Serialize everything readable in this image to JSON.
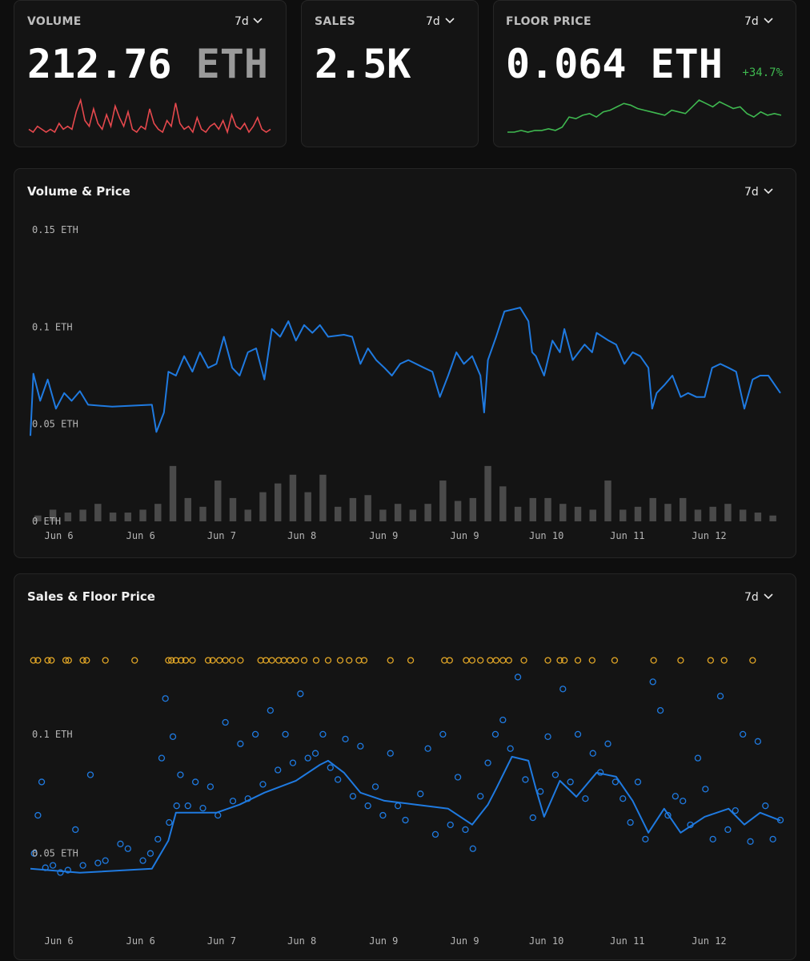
{
  "cards": [
    {
      "label": "VOLUME",
      "period": "7d",
      "value": 212.76,
      "unit": "ETH",
      "sparkline": {
        "type": "line",
        "color": "#e5484d",
        "values": [
          2,
          1,
          3,
          2,
          1,
          2,
          1,
          4,
          2,
          3,
          2,
          8,
          12,
          5,
          3,
          9,
          4,
          2,
          7,
          3,
          10,
          6,
          3,
          8,
          2,
          1,
          3,
          2,
          9,
          4,
          2,
          1,
          5,
          3,
          11,
          4,
          2,
          3,
          1,
          6,
          2,
          1,
          3,
          4,
          2,
          5,
          1,
          7,
          3,
          2,
          4,
          1,
          3,
          6,
          2,
          1,
          2
        ]
      }
    },
    {
      "label": "SALES",
      "period": "7d",
      "value": "2.5K"
    },
    {
      "label": "FLOOR PRICE",
      "period": "7d",
      "value": 0.064,
      "unit": "ETH",
      "change": "+34.7%",
      "sparkline": {
        "type": "line",
        "color": "#3fb950",
        "values": [
          0.047,
          0.047,
          0.048,
          0.047,
          0.048,
          0.048,
          0.049,
          0.048,
          0.05,
          0.056,
          0.055,
          0.057,
          0.058,
          0.056,
          0.059,
          0.06,
          0.062,
          0.064,
          0.063,
          0.061,
          0.06,
          0.059,
          0.058,
          0.057,
          0.06,
          0.059,
          0.058,
          0.062,
          0.066,
          0.064,
          0.062,
          0.065,
          0.063,
          0.061,
          0.062,
          0.058,
          0.056,
          0.059,
          0.057,
          0.058,
          0.057
        ]
      }
    }
  ],
  "chart_data": [
    {
      "type": "line",
      "title": "Volume & Price",
      "period": "7d",
      "xlim": [
        0,
        100
      ],
      "xticks": [
        {
          "value": 3.8,
          "label": "Jun 6"
        },
        {
          "value": 14.7,
          "label": "Jun 6"
        },
        {
          "value": 25.5,
          "label": "Jun 7"
        },
        {
          "value": 36.2,
          "label": "Jun 8"
        },
        {
          "value": 47.1,
          "label": "Jun 9"
        },
        {
          "value": 57.9,
          "label": "Jun 9"
        },
        {
          "value": 68.8,
          "label": "Jun 10"
        },
        {
          "value": 79.6,
          "label": "Jun 11"
        },
        {
          "value": 90.5,
          "label": "Jun 12"
        }
      ],
      "ylim": [
        0,
        0.15
      ],
      "yticks": [
        {
          "value": 0,
          "label": "0 ETH"
        },
        {
          "value": 0.05,
          "label": "0.05 ETH"
        },
        {
          "value": 0.1,
          "label": "0.1 ETH"
        },
        {
          "value": 0.15,
          "label": "0.15 ETH"
        }
      ],
      "y2lim": [
        0,
        50
      ],
      "series": [
        {
          "type": "line",
          "color": "#1f7ae0",
          "x": [
            0,
            0.4,
            1.3,
            2.3,
            3.4,
            4.5,
            5.5,
            6.6,
            7.7,
            10.9,
            16.2,
            16.8,
            17.8,
            18.4,
            19.4,
            20.5,
            21.6,
            22.6,
            23.7,
            24.8,
            25.8,
            26.9,
            27.9,
            29.0,
            30.1,
            31.2,
            32.2,
            33.3,
            34.4,
            35.4,
            36.5,
            37.6,
            38.6,
            39.7,
            41.8,
            42.9,
            44.0,
            45.0,
            46.1,
            47.2,
            48.2,
            49.3,
            50.4,
            52.5,
            53.6,
            54.6,
            55.7,
            56.8,
            57.8,
            58.9,
            60.0,
            60.5,
            61.0,
            62.1,
            63.2,
            65.3,
            66.4,
            66.9,
            67.4,
            68.5,
            69.6,
            70.6,
            71.2,
            72.3,
            73.9,
            74.9,
            75.5,
            77.1,
            78.1,
            79.2,
            80.3,
            81.3,
            82.4,
            82.9,
            83.5,
            84.5,
            85.6,
            86.7,
            87.7,
            88.8,
            89.9,
            90.9,
            92.0,
            93.1,
            94.1,
            95.2,
            96.3,
            97.3,
            98.4,
            100
          ],
          "values": [
            0.044,
            0.076,
            0.062,
            0.073,
            0.058,
            0.066,
            0.062,
            0.067,
            0.06,
            0.059,
            0.06,
            0.046,
            0.056,
            0.077,
            0.075,
            0.085,
            0.077,
            0.087,
            0.079,
            0.081,
            0.095,
            0.079,
            0.075,
            0.087,
            0.089,
            0.073,
            0.099,
            0.095,
            0.103,
            0.093,
            0.101,
            0.097,
            0.101,
            0.095,
            0.096,
            0.095,
            0.081,
            0.089,
            0.083,
            0.079,
            0.075,
            0.081,
            0.083,
            0.079,
            0.077,
            0.064,
            0.075,
            0.087,
            0.081,
            0.085,
            0.075,
            0.056,
            0.083,
            0.095,
            0.108,
            0.11,
            0.103,
            0.087,
            0.085,
            0.075,
            0.093,
            0.087,
            0.099,
            0.083,
            0.091,
            0.087,
            0.097,
            0.093,
            0.091,
            0.081,
            0.087,
            0.085,
            0.079,
            0.058,
            0.066,
            0.07,
            0.075,
            0.064,
            0.066,
            0.064,
            0.064,
            0.079,
            0.081,
            0.079,
            0.077,
            0.058,
            0.073,
            0.075,
            0.075,
            0.066
          ]
        },
        {
          "type": "bar",
          "axis": "y2",
          "color": "#4a4a4a",
          "x": [
            1,
            3,
            5,
            7,
            9,
            11,
            13,
            15,
            17,
            19,
            21,
            23,
            25,
            27,
            29,
            31,
            33,
            35,
            37,
            39,
            41,
            43,
            45,
            47,
            49,
            51,
            53,
            55,
            57,
            59,
            61,
            63,
            65,
            67,
            69,
            71,
            73,
            75,
            77,
            79,
            81,
            83,
            85,
            87,
            89,
            91,
            93,
            95,
            97,
            99
          ],
          "values": [
            1,
            2,
            1.5,
            2,
            3,
            1.5,
            1.5,
            2,
            3,
            9.5,
            4,
            2.5,
            7,
            4,
            2,
            5,
            6.5,
            8,
            5,
            8,
            2.5,
            4,
            4.5,
            2,
            3,
            2,
            3,
            7,
            3.5,
            4,
            9.5,
            6,
            2.5,
            4,
            4,
            3,
            2.5,
            2,
            7,
            2,
            2.5,
            4,
            3,
            4,
            2,
            2.5,
            3,
            2,
            1.5,
            1
          ]
        }
      ]
    },
    {
      "type": "scatter",
      "title": "Sales & Floor Price",
      "period": "7d",
      "xlim": [
        0,
        100
      ],
      "xticks": [
        {
          "value": 3.8,
          "label": "Jun 6"
        },
        {
          "value": 14.7,
          "label": "Jun 6"
        },
        {
          "value": 25.5,
          "label": "Jun 7"
        },
        {
          "value": 36.2,
          "label": "Jun 8"
        },
        {
          "value": 47.1,
          "label": "Jun 9"
        },
        {
          "value": 57.9,
          "label": "Jun 9"
        },
        {
          "value": 68.8,
          "label": "Jun 10"
        },
        {
          "value": 79.6,
          "label": "Jun 11"
        },
        {
          "value": 90.5,
          "label": "Jun 12"
        }
      ],
      "ylim": [
        0.02,
        0.13
      ],
      "yticks": [
        {
          "value": 0.05,
          "label": "0.05 ETH"
        },
        {
          "value": 0.1,
          "label": "0.1 ETH"
        }
      ],
      "series": [
        {
          "type": "scatter",
          "color": "#1f7ae0",
          "x": [
            0.5,
            1,
            1.5,
            2,
            3,
            4,
            5,
            6,
            7,
            8,
            9,
            10,
            12,
            13,
            15,
            16,
            17,
            17.5,
            18,
            18.5,
            19,
            19.5,
            20,
            21,
            22,
            23,
            24,
            25,
            26,
            27,
            28,
            29,
            30,
            31,
            32,
            33,
            34,
            35,
            36,
            37,
            38,
            39,
            40,
            41,
            42,
            43,
            44,
            45,
            46,
            47,
            48,
            49,
            50,
            52,
            53,
            54,
            55,
            56,
            57,
            58,
            59,
            60,
            61,
            62,
            63,
            64,
            65,
            66,
            67,
            68,
            69,
            70,
            71,
            72,
            73,
            74,
            75,
            76,
            77,
            78,
            79,
            80,
            81,
            82,
            83,
            84,
            85,
            86,
            87,
            88,
            89,
            90,
            91,
            92,
            93,
            94,
            95,
            96,
            97,
            98,
            99,
            100
          ],
          "values": [
            0.05,
            0.066,
            0.08,
            0.044,
            0.045,
            0.042,
            0.043,
            0.06,
            0.045,
            0.083,
            0.046,
            0.047,
            0.054,
            0.052,
            0.047,
            0.05,
            0.056,
            0.09,
            0.115,
            0.063,
            0.099,
            0.07,
            0.083,
            0.07,
            0.08,
            0.069,
            0.078,
            0.066,
            0.105,
            0.072,
            0.096,
            0.073,
            0.1,
            0.079,
            0.11,
            0.085,
            0.1,
            0.088,
            0.117,
            0.09,
            0.092,
            0.1,
            0.086,
            0.081,
            0.098,
            0.074,
            0.095,
            0.07,
            0.078,
            0.066,
            0.092,
            0.07,
            0.064,
            0.075,
            0.094,
            0.058,
            0.1,
            0.062,
            0.082,
            0.06,
            0.052,
            0.074,
            0.088,
            0.1,
            0.106,
            0.094,
            0.124,
            0.081,
            0.065,
            0.076,
            0.099,
            0.083,
            0.119,
            0.08,
            0.1,
            0.073,
            0.092,
            0.084,
            0.096,
            0.08,
            0.073,
            0.063,
            0.08,
            0.056,
            0.122,
            0.11,
            0.066,
            0.074,
            0.072,
            0.062,
            0.09,
            0.077,
            0.056,
            0.116,
            0.06,
            0.068,
            0.1,
            0.055,
            0.097,
            0.07,
            0.056,
            0.064
          ]
        },
        {
          "type": "line",
          "color": "#1f7ae0",
          "x": [
            0,
            6.6,
            16.2,
            18.4,
            19.4,
            24.8,
            27.9,
            31.2,
            35.4,
            38.6,
            39.7,
            41.8,
            44.0,
            47.2,
            51.4,
            55.7,
            58.9,
            61.0,
            62.1,
            64.2,
            66.4,
            67.4,
            68.5,
            70.6,
            72.8,
            75.5,
            78.1,
            80.3,
            82.4,
            84.5,
            86.7,
            89.9,
            93.1,
            95.2,
            97.3,
            100
          ],
          "values": [
            0.0436,
            0.0419,
            0.0436,
            0.0554,
            0.0671,
            0.0671,
            0.0705,
            0.0755,
            0.0805,
            0.0872,
            0.0889,
            0.0839,
            0.0755,
            0.0721,
            0.0705,
            0.0688,
            0.0621,
            0.0705,
            0.0772,
            0.0906,
            0.0889,
            0.0772,
            0.0654,
            0.0805,
            0.0738,
            0.0839,
            0.0822,
            0.0721,
            0.0587,
            0.0688,
            0.0587,
            0.0654,
            0.0688,
            0.0621,
            0.0671,
            0.0638
          ]
        },
        {
          "type": "outlier",
          "color": "#e0a526",
          "x": [
            0.4,
            1,
            2.3,
            2.8,
            4.7,
            5.1,
            7,
            7.5,
            10,
            13.9,
            18.4,
            18.8,
            19.4,
            20.1,
            20.7,
            21.6,
            23.7,
            24.3,
            25.2,
            26,
            26.9,
            28,
            30.7,
            31.4,
            32.2,
            33.1,
            33.8,
            34.6,
            35.4,
            36.5,
            38.1,
            39.7,
            41.3,
            42.5,
            43.8,
            44.5,
            48,
            50.7,
            55.2,
            55.9,
            58.1,
            58.9,
            60,
            61.3,
            62.1,
            63,
            63.8,
            65.8,
            69,
            70.6,
            71.2,
            73,
            74.9,
            77.9,
            83.1,
            86.7,
            90.7,
            92.5,
            96.3
          ]
        }
      ]
    }
  ]
}
